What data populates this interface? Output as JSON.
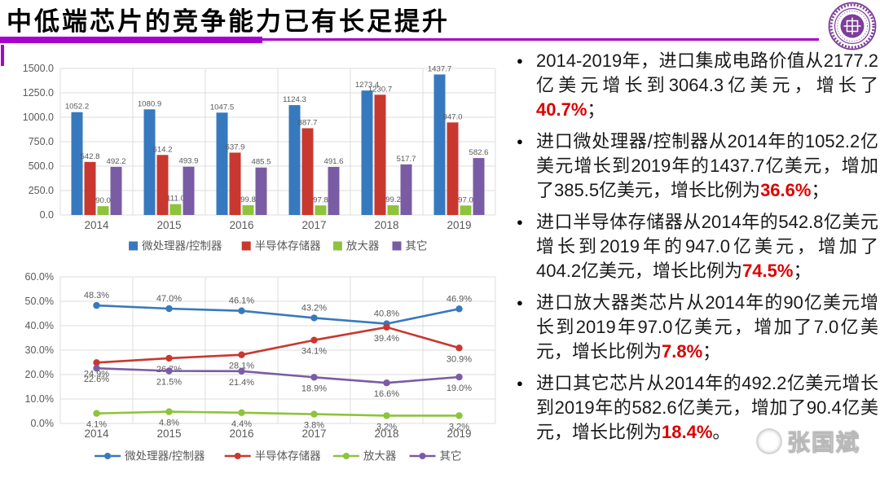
{
  "slide": {
    "title": "中低端芯片的竞争能力已有长足提升",
    "accent_color": "#A800CE",
    "highlight_color": "#DB0000",
    "watermark_text": "张国斌",
    "logo_color": "#7C3F98"
  },
  "bullets": [
    {
      "pre": "2014-2019年，进口集成电路价值从2177.2亿美元增长到3064.3亿美元，增长了",
      "highlight": "40.7%",
      "post": "；"
    },
    {
      "pre": "进口微处理器/控制器从2014年的1052.2亿美元增长到2019年的1437.7亿美元，增加了385.5亿美元，增长比例为",
      "highlight": "36.6%",
      "post": "；"
    },
    {
      "pre": "进口半导体存储器从2014年的542.8亿美元增长到2019年的947.0亿美元，增加了404.2亿美元，增长比例为",
      "highlight": "74.5%",
      "post": "；"
    },
    {
      "pre": "进口放大器类芯片从2014年的90亿美元增长到2019年97.0亿美元，增加了7.0亿美元，增长比例为",
      "highlight": "7.8%",
      "post": "；"
    },
    {
      "pre": "进口其它芯片从2014年的492.2亿美元增长到2019年的582.6亿美元，增加了90.4亿美元，增长比例为",
      "highlight": "18.4%",
      "post": "。"
    }
  ],
  "chart_data": [
    {
      "type": "bar",
      "title": "",
      "xlabel": "",
      "ylabel": "",
      "categories": [
        "2014",
        "2015",
        "2016",
        "2017",
        "2018",
        "2019"
      ],
      "series": [
        {
          "name": "微处理器/控制器",
          "color": "#3779BE",
          "values": [
            1052.2,
            1080.9,
            1047.5,
            1124.3,
            1273.4,
            1437.7
          ]
        },
        {
          "name": "半导体存储器",
          "color": "#C8382F",
          "values": [
            542.8,
            614.2,
            637.9,
            887.7,
            1230.7,
            947.0
          ]
        },
        {
          "name": "放大器",
          "color": "#8EC33C",
          "values": [
            90.0,
            111.0,
            99.8,
            97.8,
            99.2,
            97.0
          ]
        },
        {
          "name": "其它",
          "color": "#7A5CA5",
          "values": [
            492.2,
            493.9,
            485.5,
            491.6,
            517.7,
            582.6
          ]
        }
      ],
      "ylim": [
        0,
        1500
      ],
      "ytick_step": 250,
      "ytick_labels": [
        "0.0",
        "250.0",
        "500.0",
        "750.0",
        "1000.0",
        "1250.0",
        "1500.0"
      ],
      "grid": true,
      "legend_position": "bottom",
      "value_labels": true
    },
    {
      "type": "line",
      "title": "",
      "xlabel": "",
      "ylabel": "",
      "categories": [
        "2014",
        "2015",
        "2016",
        "2017",
        "2018",
        "2019"
      ],
      "series": [
        {
          "name": "微处理器/控制器",
          "color": "#3779BE",
          "label_position": "above",
          "values": [
            48.3,
            47.0,
            46.1,
            43.2,
            40.8,
            46.9
          ]
        },
        {
          "name": "半导体存储器",
          "color": "#C8382F",
          "label_position": "below",
          "values": [
            24.9,
            26.7,
            28.1,
            34.1,
            39.4,
            30.9
          ]
        },
        {
          "name": "放大器",
          "color": "#8EC33C",
          "label_position": "below",
          "values": [
            4.1,
            4.8,
            4.4,
            3.8,
            3.2,
            3.2
          ]
        },
        {
          "name": "其它",
          "color": "#7A5CA5",
          "label_position": "below",
          "values": [
            22.6,
            21.5,
            21.4,
            18.9,
            16.6,
            19.0
          ]
        }
      ],
      "ylim": [
        0,
        60
      ],
      "ytick_step": 10,
      "ytick_labels": [
        "0.0%",
        "10.0%",
        "20.0%",
        "30.0%",
        "40.0%",
        "50.0%",
        "60.0%"
      ],
      "grid": true,
      "legend_position": "bottom",
      "value_labels": true
    }
  ]
}
